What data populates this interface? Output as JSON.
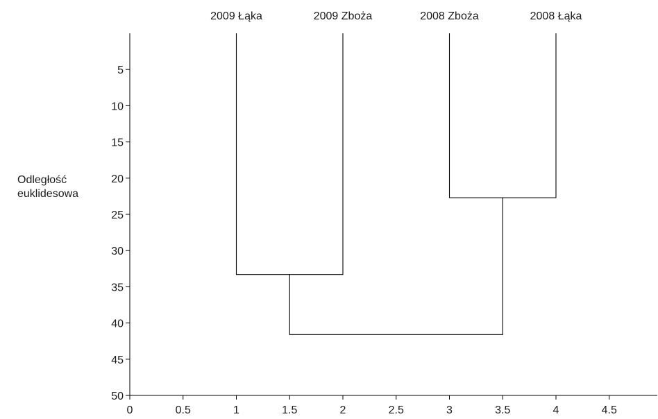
{
  "chart_data": {
    "type": "dendrogram",
    "leaves": [
      {
        "label": "2009 Łąka",
        "x": 1
      },
      {
        "label": "2009 Zboża",
        "x": 2
      },
      {
        "label": "2008 Zboża",
        "x": 3
      },
      {
        "label": "2008 Łąka",
        "x": 4
      }
    ],
    "merges": [
      {
        "left_x": 1,
        "right_x": 2,
        "distance": 33.3
      },
      {
        "left_x": 3,
        "right_x": 4,
        "distance": 22.7
      },
      {
        "left_x": 1.5,
        "right_x": 3.5,
        "distance": 41.6
      }
    ],
    "ylabel": [
      "Odległość",
      "euklidesowa"
    ],
    "xlim": [
      0,
      5
    ],
    "ylim": [
      0,
      50
    ],
    "y_inverted": true,
    "x_ticks": [
      0,
      0.5,
      1,
      1.5,
      2,
      2.5,
      3,
      3.5,
      4,
      4.5
    ],
    "y_ticks": [
      5,
      10,
      15,
      20,
      25,
      30,
      35,
      40,
      45,
      50
    ],
    "grid": false
  }
}
